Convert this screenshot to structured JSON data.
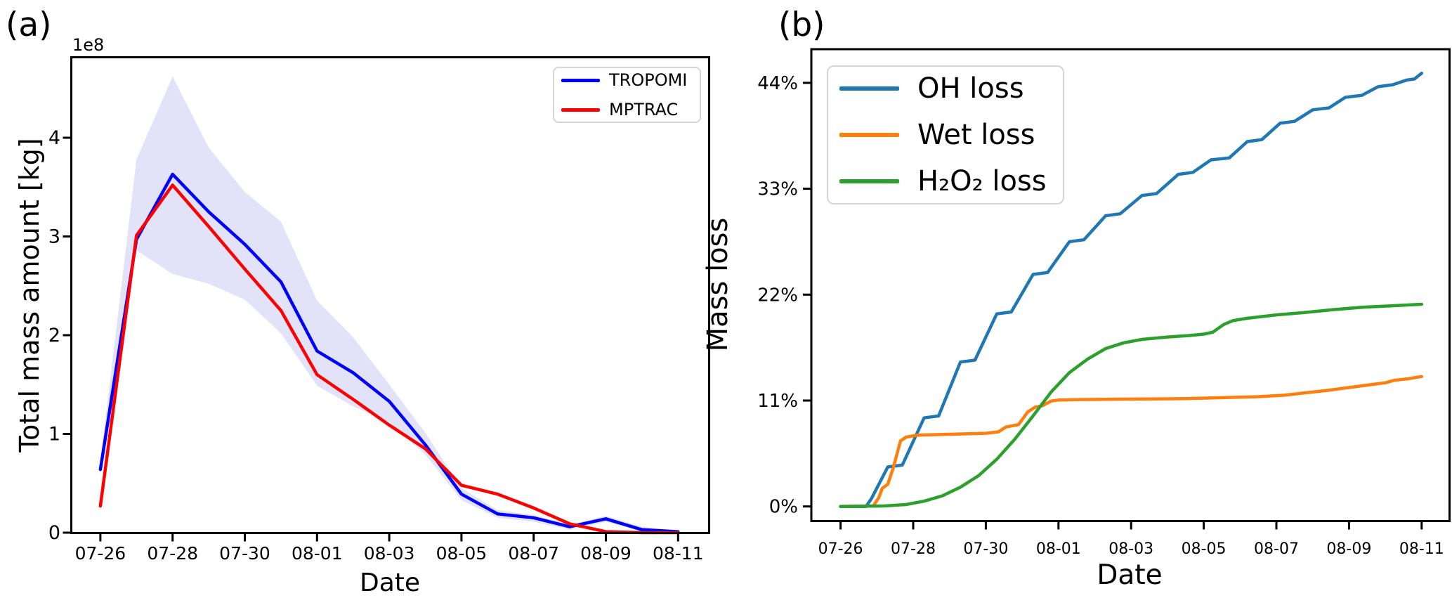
{
  "figure": {
    "panel_a_label": "(a)",
    "panel_b_label": "(b)",
    "background_color": "#ffffff",
    "text_color": "#000000"
  },
  "chart_data": [
    {
      "type": "line",
      "panel": "a",
      "title": "",
      "xlabel": "Date",
      "ylabel": "Total mass amount [kg]",
      "y_offset_label": "1e8",
      "y_unit_factor": "1e8 kg",
      "x_tick_labels": [
        "07-26",
        "07-28",
        "07-30",
        "08-01",
        "08-03",
        "08-05",
        "08-07",
        "08-09",
        "08-11"
      ],
      "x_tick_days": [
        0,
        2,
        4,
        6,
        8,
        10,
        12,
        14,
        16
      ],
      "y_tick_labels": [
        "0",
        "1",
        "2",
        "3",
        "4"
      ],
      "y_tick_values": [
        0,
        1,
        2,
        3,
        4
      ],
      "ylim": [
        -0.04,
        4.81
      ],
      "xlim_days": [
        -0.81,
        16.87
      ],
      "grid": false,
      "legend_position": "upper right",
      "x_dates": [
        "07-26",
        "07-27",
        "07-28",
        "07-29",
        "07-30",
        "07-31",
        "08-01",
        "08-02",
        "08-03",
        "08-04",
        "08-05",
        "08-06",
        "08-07",
        "08-08",
        "08-09",
        "08-10",
        "08-11"
      ],
      "series": [
        {
          "name": "TROPOMI",
          "color": "#0000ff",
          "values": [
            0.64,
            2.97,
            3.63,
            3.25,
            2.92,
            2.54,
            1.84,
            1.62,
            1.33,
            0.89,
            0.39,
            0.19,
            0.15,
            0.06,
            0.14,
            0.03,
            0.01
          ]
        },
        {
          "name": "MPTRAC",
          "color": "#ff0000",
          "values": [
            0.27,
            3.01,
            3.52,
            3.1,
            2.67,
            2.25,
            1.6,
            1.35,
            1.09,
            0.85,
            0.48,
            0.39,
            0.25,
            0.09,
            0.01,
            0.0,
            0.0
          ]
        }
      ],
      "band": {
        "name": "TROPOMI uncertainty band",
        "color": "#e2e2f9",
        "upper": [
          0.72,
          3.78,
          4.62,
          3.9,
          3.45,
          3.15,
          2.35,
          1.98,
          1.5,
          1.01,
          0.45,
          0.23,
          0.18,
          0.08,
          0.17,
          0.06,
          0.02
        ],
        "lower": [
          0.58,
          2.86,
          2.62,
          2.52,
          2.36,
          2.02,
          1.49,
          1.28,
          1.12,
          0.79,
          0.33,
          0.15,
          0.11,
          0.03,
          0.11,
          0.01,
          0.0
        ]
      }
    },
    {
      "type": "line",
      "panel": "b",
      "title": "",
      "xlabel": "Date",
      "ylabel": "Mass loss",
      "x_tick_labels": [
        "07-26",
        "07-28",
        "07-30",
        "08-01",
        "08-03",
        "08-05",
        "08-07",
        "08-09",
        "08-11"
      ],
      "x_tick_days": [
        0,
        2,
        4,
        6,
        8,
        10,
        12,
        14,
        16
      ],
      "y_tick_labels": [
        "0%",
        "11%",
        "22%",
        "33%",
        "44%"
      ],
      "y_tick_values": [
        0,
        11,
        22,
        33,
        44
      ],
      "ylim": [
        -1.55,
        47.5
      ],
      "xlim_days": [
        -0.81,
        16.77
      ],
      "grid": false,
      "legend_position": "upper left",
      "series": [
        {
          "name": "OH loss",
          "color": "#1f77b4",
          "points": [
            [
              0,
              0
            ],
            [
              0.7,
              0
            ],
            [
              0.85,
              0.8
            ],
            [
              1.3,
              4.1
            ],
            [
              1.7,
              4.3
            ],
            [
              2.3,
              9.2
            ],
            [
              2.7,
              9.4
            ],
            [
              3.3,
              15.0
            ],
            [
              3.7,
              15.2
            ],
            [
              4.3,
              20.0
            ],
            [
              4.7,
              20.2
            ],
            [
              5.3,
              24.1
            ],
            [
              5.7,
              24.3
            ],
            [
              6.3,
              27.5
            ],
            [
              6.7,
              27.7
            ],
            [
              7.3,
              30.2
            ],
            [
              7.7,
              30.4
            ],
            [
              8.3,
              32.3
            ],
            [
              8.7,
              32.5
            ],
            [
              9.3,
              34.5
            ],
            [
              9.7,
              34.7
            ],
            [
              10.2,
              36.0
            ],
            [
              10.7,
              36.2
            ],
            [
              11.2,
              37.9
            ],
            [
              11.6,
              38.1
            ],
            [
              12.1,
              39.8
            ],
            [
              12.5,
              40.0
            ],
            [
              13.0,
              41.2
            ],
            [
              13.45,
              41.4
            ],
            [
              13.9,
              42.5
            ],
            [
              14.35,
              42.7
            ],
            [
              14.8,
              43.6
            ],
            [
              15.2,
              43.8
            ],
            [
              15.6,
              44.3
            ],
            [
              15.8,
              44.4
            ],
            [
              16,
              45.0
            ]
          ]
        },
        {
          "name": "Wet loss",
          "color": "#ff7f0e",
          "points": [
            [
              0,
              0
            ],
            [
              0.9,
              0.05
            ],
            [
              1.05,
              0.9
            ],
            [
              1.15,
              1.9
            ],
            [
              1.3,
              2.3
            ],
            [
              1.45,
              4.0
            ],
            [
              1.65,
              6.8
            ],
            [
              1.8,
              7.2
            ],
            [
              2.1,
              7.4
            ],
            [
              3.0,
              7.5
            ],
            [
              4.0,
              7.6
            ],
            [
              4.35,
              7.75
            ],
            [
              4.55,
              8.25
            ],
            [
              4.9,
              8.5
            ],
            [
              5.15,
              9.8
            ],
            [
              5.35,
              10.3
            ],
            [
              5.55,
              10.45
            ],
            [
              5.8,
              10.95
            ],
            [
              6.0,
              11.05
            ],
            [
              6.6,
              11.1
            ],
            [
              8.0,
              11.15
            ],
            [
              9.5,
              11.2
            ],
            [
              10.5,
              11.3
            ],
            [
              11.5,
              11.4
            ],
            [
              12.2,
              11.55
            ],
            [
              12.8,
              11.8
            ],
            [
              13.4,
              12.05
            ],
            [
              14.0,
              12.35
            ],
            [
              14.6,
              12.65
            ],
            [
              15.0,
              12.85
            ],
            [
              15.25,
              13.1
            ],
            [
              15.6,
              13.25
            ],
            [
              16,
              13.5
            ]
          ]
        },
        {
          "name": "H₂O₂ loss",
          "color": "#2ca02c",
          "points": [
            [
              0,
              0
            ],
            [
              1.2,
              0.05
            ],
            [
              1.8,
              0.2
            ],
            [
              2.3,
              0.55
            ],
            [
              2.8,
              1.1
            ],
            [
              3.3,
              2.0
            ],
            [
              3.8,
              3.2
            ],
            [
              4.3,
              4.9
            ],
            [
              4.8,
              7.0
            ],
            [
              5.3,
              9.4
            ],
            [
              5.8,
              11.9
            ],
            [
              6.3,
              13.9
            ],
            [
              6.8,
              15.3
            ],
            [
              7.3,
              16.4
            ],
            [
              7.8,
              17.0
            ],
            [
              8.3,
              17.35
            ],
            [
              9.0,
              17.6
            ],
            [
              9.6,
              17.75
            ],
            [
              10.0,
              17.9
            ],
            [
              10.25,
              18.1
            ],
            [
              10.55,
              18.9
            ],
            [
              10.8,
              19.3
            ],
            [
              11.2,
              19.55
            ],
            [
              12.0,
              19.9
            ],
            [
              12.8,
              20.15
            ],
            [
              13.6,
              20.45
            ],
            [
              14.4,
              20.7
            ],
            [
              15.2,
              20.85
            ],
            [
              16,
              21.0
            ]
          ]
        }
      ]
    }
  ]
}
